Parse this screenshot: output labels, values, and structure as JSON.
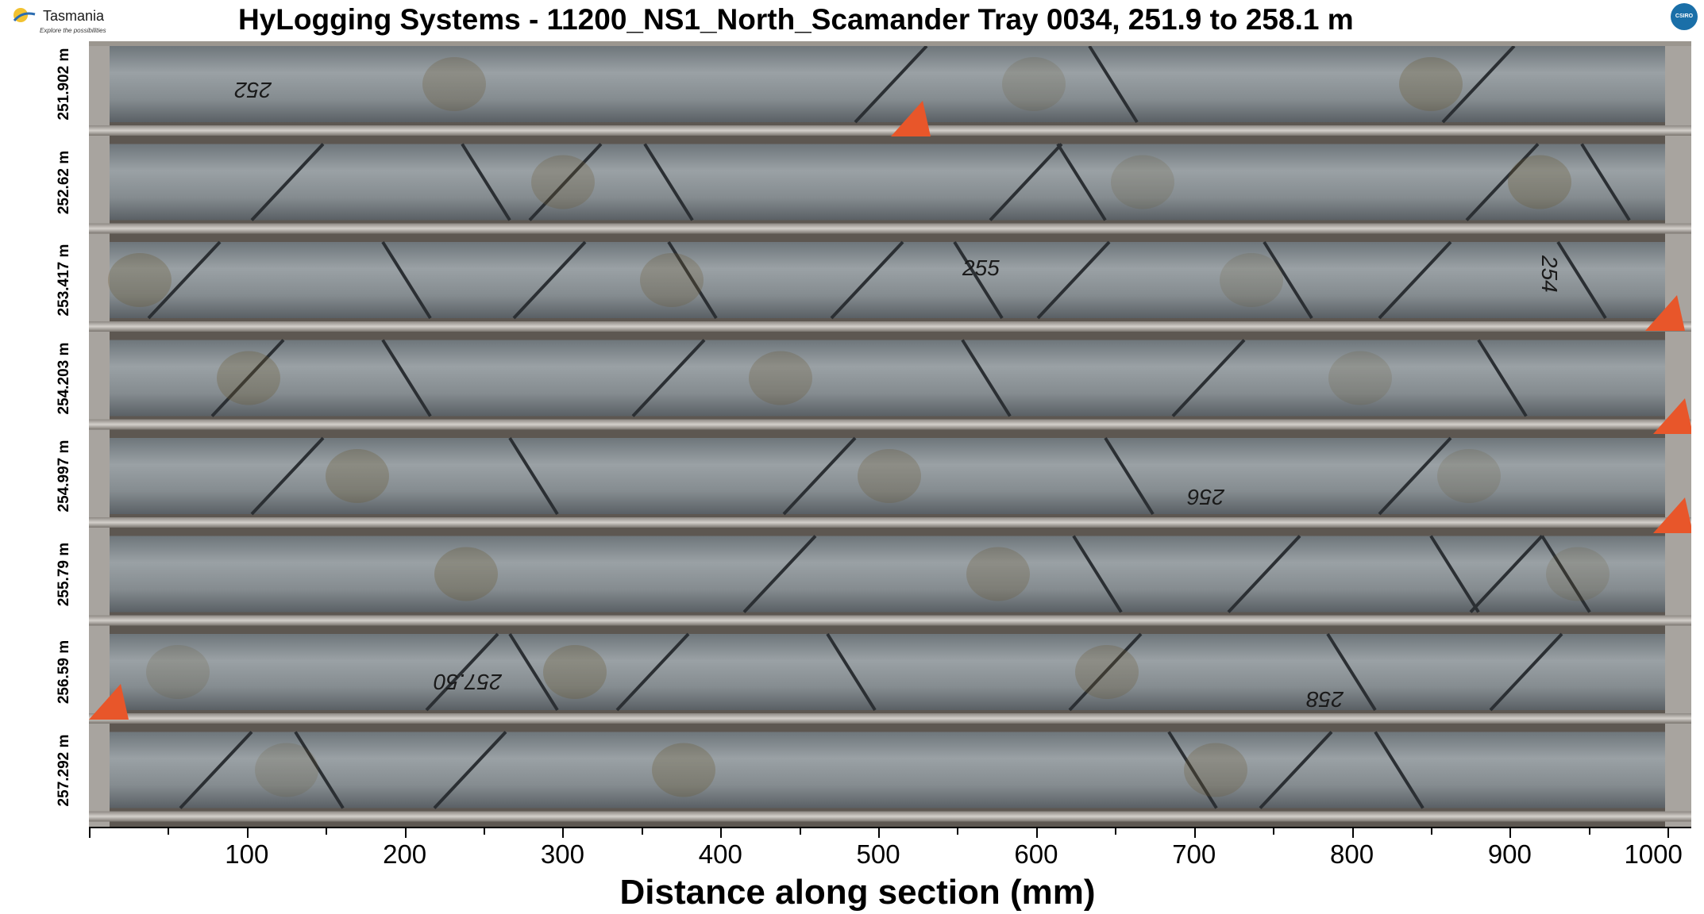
{
  "header": {
    "title": "HyLogging Systems  -  11200_NS1_North_Scamander  Tray 0034,  251.9 to 258.1 m",
    "logo_name": "Tasmania",
    "logo_tagline": "Explore the possibilities",
    "csiro_badge": "CSIRO"
  },
  "depth_labels": [
    "251.902 m",
    "252.62 m",
    "253.417 m",
    "254.203 m",
    "254.997 m",
    "255.79 m",
    "256.59 m",
    "257.292 m"
  ],
  "axis": {
    "xlabel": "Distance along section (mm)",
    "tick_labels": [
      "100",
      "200",
      "300",
      "400",
      "500",
      "600",
      "700",
      "800",
      "900",
      "1000"
    ]
  },
  "core_markings": [
    "252",
    "254",
    "255",
    "256",
    "257.50",
    "258"
  ],
  "colors": {
    "core": "#8b9296",
    "core_dark": "#4f555a",
    "rail": "#b9b5b0",
    "tray": "#5d5751",
    "orange_marker": "#e8562a"
  }
}
